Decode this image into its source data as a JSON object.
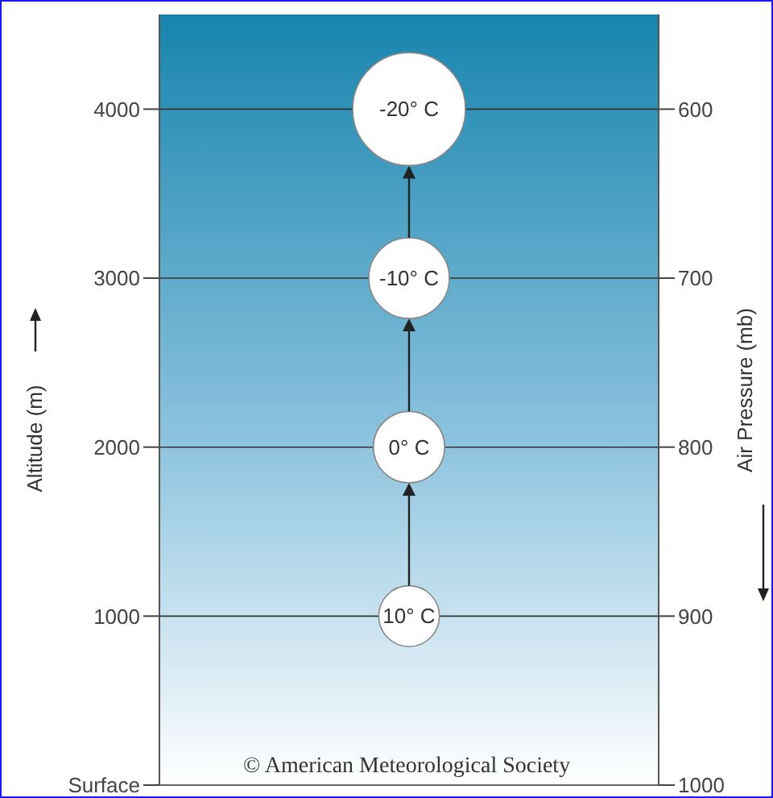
{
  "chart_data": {
    "type": "bubble",
    "ylabel": "Altitude (m)",
    "y2label": "Air Pressure (mb)",
    "categories": [
      null
    ],
    "series": [
      {
        "color": "#ffffff",
        "x": [
          null,
          null,
          null,
          null
        ],
        "values": [
          1000,
          2000,
          3000,
          4000
        ],
        "sizes": [
          0.29,
          0.4,
          0.51,
          1
        ]
      }
    ],
    "ylim": [
      0,
      4560
    ],
    "yticks": [
      {
        "value": 0,
        "label": "Surface"
      },
      1000,
      2000,
      3000,
      4000
    ],
    "y2lim": [
      1000,
      544
    ],
    "y2ticks": [
      1000,
      900,
      800,
      700,
      600
    ],
    "grid": "y",
    "annotations": [
      "10° C",
      "0° C",
      "-10° C",
      "-20° C",
      "© American Meteorological Society"
    ]
  }
}
